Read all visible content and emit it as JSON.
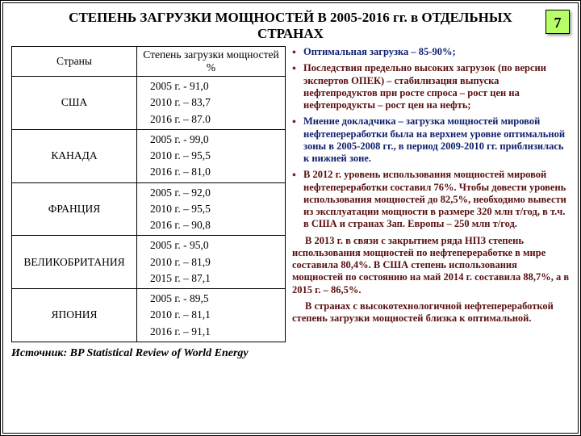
{
  "page_number": "7",
  "title": "СТЕПЕНЬ ЗАГРУЗКИ МОЩНОСТЕЙ В 2005-2016 гг. в ОТДЕЛЬНЫХ СТРАНАХ",
  "table": {
    "col1": "Страны",
    "col2": "Степень загрузки мощностей %",
    "rows": [
      {
        "country": "США",
        "l1": "2005 г. - 91,0",
        "l2": "2010 г. – 83,7",
        "l3": "2016 г. – 87.0"
      },
      {
        "country": "КАНАДА",
        "l1": "2005 г. - 99,0",
        "l2": "2010 г. – 95,5",
        "l3": "2016 г. – 81,0"
      },
      {
        "country": "ФРАНЦИЯ",
        "l1": "2005 г. – 92,0",
        "l2": "2010 г. – 95,5",
        "l3": "2016 г. – 90,8"
      },
      {
        "country": "ВЕЛИКОБРИТАНИЯ",
        "l1": "2005 г. - 95,0",
        "l2": "2010 г. – 81,9",
        "l3": "2015 г. – 87,1"
      },
      {
        "country": "ЯПОНИЯ",
        "l1": "2005 г. - 89,5",
        "l2": "2010 г. –  81,1",
        "l3": "2016 г. – 91,1"
      }
    ]
  },
  "source": "Источник: BP Statistical Review of World Energy",
  "bullets": [
    {
      "color": "c-navy",
      "text": "Оптимальная загрузка – 85-90%;"
    },
    {
      "color": "c-maroon",
      "text": "Последствия предельно высоких загрузок (по версии экспертов ОПЕК) – стабилизация выпуска нефтепродуктов при росте спроса – рост цен на нефтепродукты – рост цен на нефть;"
    },
    {
      "color": "c-navy",
      "text": "Мнение докладчика – загрузка мощностей мировой нефтепереработки была на верхнем уровне оптимальной зоны в 2005-2008 гг., в период 2009-2010 гг. приблизилась к нижней зоне."
    },
    {
      "color": "c-maroon",
      "text": "В 2012 г. уровень использования мощностей мировой нефтепереработки составил 76%. Чтобы довести уровень использования мощностей до 82,5%, необходимо вывести из эксплуатации мощности в размере 320 млн т/год, в т.ч. в США и странах Зап. Европы – 250 млн т/год."
    }
  ],
  "paragraphs": [
    "В 2013 г. в связи с закрытием ряда НПЗ степень использования мощностей по нефтепереработке в мире составила 80,4%. В США степень использования мощностей по состоянию на май 2014 г. составила 88,7%, а в 2015 г. – 86,5%.",
    "В странах с высокотехнологичной нефтепереработкой степень загрузки мощностей близка к оптимальной."
  ]
}
